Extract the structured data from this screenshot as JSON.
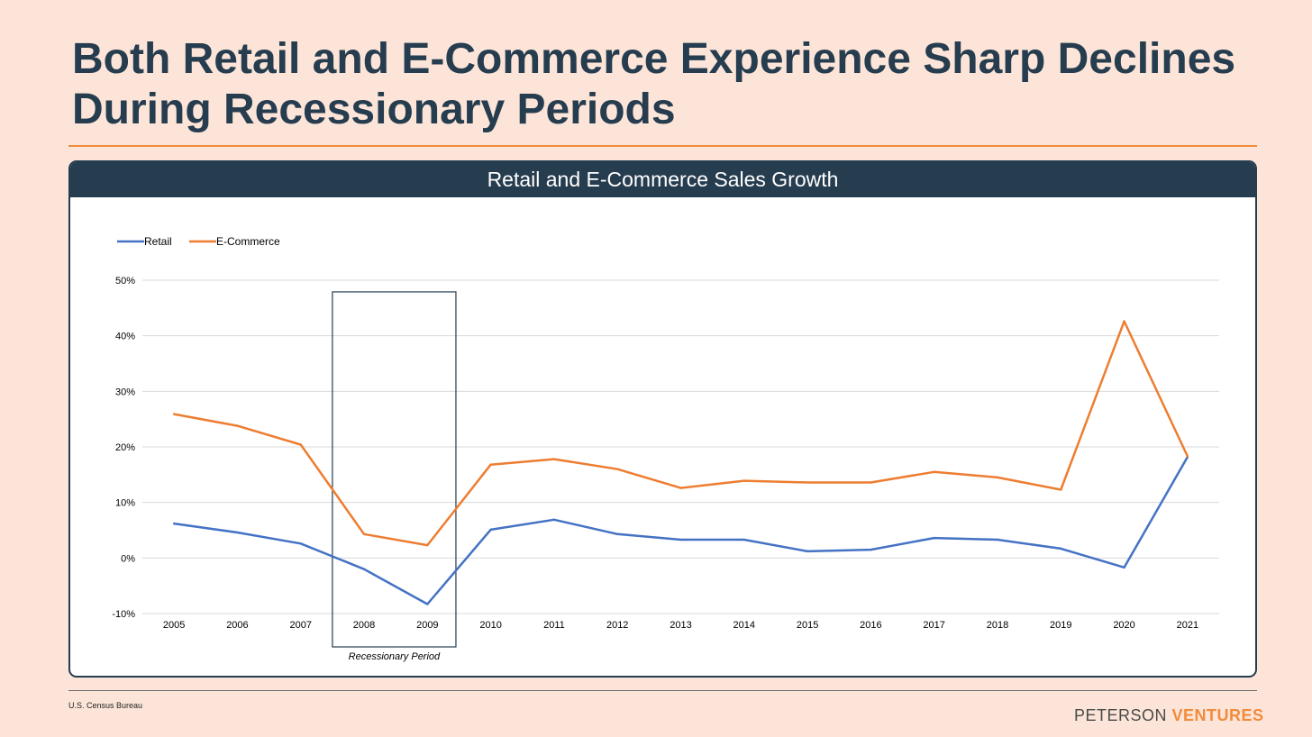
{
  "slide": {
    "title": "Both Retail and E-Commerce Experience Sharp Declines During Recessionary Periods",
    "panel_title": "Retail and E-Commerce Sales Growth",
    "source": "U.S. Census Bureau",
    "brand_first": "PETERSON",
    "brand_second": "VENTURES"
  },
  "colors": {
    "retail": "#4472c4",
    "ecommerce": "#ed7d31",
    "navy": "#263c4f",
    "accent": "#f08c3c"
  },
  "chart_data": {
    "type": "line",
    "title": "Retail and E-Commerce Sales Growth",
    "xlabel": "",
    "ylabel": "",
    "legend_position": "top-left",
    "grid": true,
    "categories": [
      "2005",
      "2006",
      "2007",
      "2008",
      "2009",
      "2010",
      "2011",
      "2012",
      "2013",
      "2014",
      "2015",
      "2016",
      "2017",
      "2018",
      "2019",
      "2020",
      "2021"
    ],
    "ylim": [
      -10,
      50
    ],
    "yticks": [
      -10,
      0,
      10,
      20,
      30,
      40,
      50
    ],
    "ytick_labels": [
      "-10%",
      "0%",
      "10%",
      "20%",
      "30%",
      "40%",
      "50%"
    ],
    "series": [
      {
        "name": "Retail",
        "color": "#4472c4",
        "values": [
          6.2,
          4.6,
          2.6,
          -2.0,
          -8.3,
          5.1,
          6.9,
          4.3,
          3.3,
          3.3,
          1.2,
          1.5,
          3.6,
          3.3,
          1.7,
          -1.7,
          18.2
        ]
      },
      {
        "name": "E-Commerce",
        "color": "#ed7d31",
        "values": [
          25.9,
          23.8,
          20.4,
          4.3,
          2.3,
          16.8,
          17.8,
          16.0,
          12.6,
          13.9,
          13.6,
          13.6,
          15.5,
          14.5,
          12.3,
          42.6,
          18.3
        ]
      }
    ],
    "annotations": [
      {
        "text": "Recessionary Period",
        "from": "2008",
        "to": "2009"
      }
    ]
  }
}
